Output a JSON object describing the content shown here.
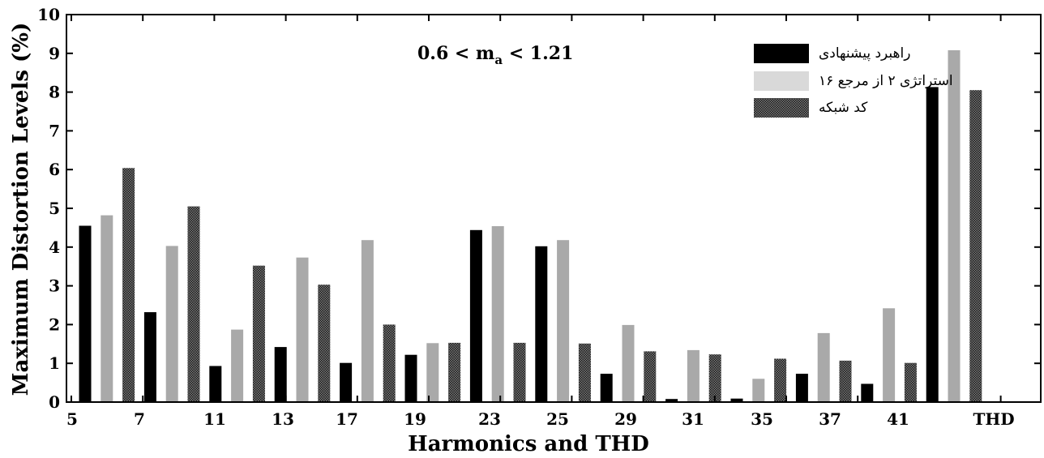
{
  "chart_data": {
    "type": "bar",
    "title": "",
    "xlabel": "Harmonics and THD",
    "ylabel": "Maximum Distortion Levels (%)",
    "ylim": [
      0,
      10
    ],
    "yticks": [
      0,
      1,
      2,
      3,
      4,
      5,
      6,
      7,
      8,
      9,
      10
    ],
    "annotation": {
      "base": "0.6 < m",
      "sub": "a",
      "rest": " < 1.21"
    },
    "category_labels": [
      "5",
      "7",
      "11",
      "13",
      "17",
      "19",
      "23",
      "25",
      "29",
      "31",
      "35",
      "37",
      "41",
      "THD"
    ],
    "legend_position": "top-right",
    "series": [
      {
        "name": "راهبرد پیشنهادی",
        "style": "solid",
        "color": "#000000",
        "values": [
          4.55,
          2.32,
          0.93,
          1.42,
          1.01,
          1.22,
          4.44,
          4.02,
          0.73,
          0.08,
          0.09,
          0.73,
          0.47,
          8.13
        ]
      },
      {
        "name": "استراتژی ۲ از مرجع ۱۶",
        "style": "light",
        "color": "#a9a9a9",
        "values": [
          4.82,
          4.03,
          1.87,
          3.73,
          4.18,
          1.52,
          4.54,
          4.18,
          1.99,
          1.34,
          0.6,
          1.78,
          2.42,
          9.08
        ]
      },
      {
        "name": "کد شبکه",
        "style": "hatched",
        "color": "#555555",
        "values": [
          6.04,
          5.05,
          3.52,
          3.03,
          2.0,
          1.53,
          1.53,
          1.51,
          1.31,
          1.23,
          1.12,
          1.07,
          1.01,
          8.05
        ]
      }
    ]
  }
}
